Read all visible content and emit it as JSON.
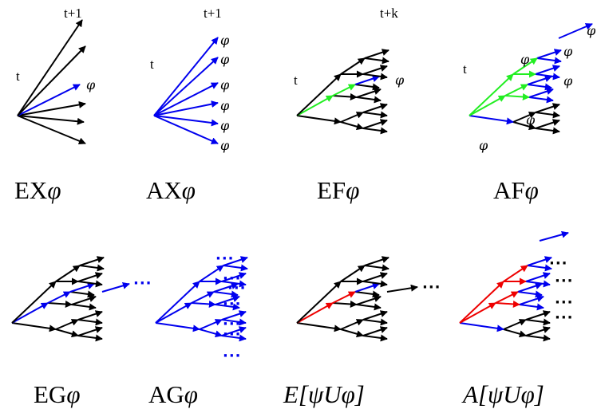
{
  "colors": {
    "black": "#000000",
    "blue": "#0000ee",
    "green": "#22ee22",
    "red": "#ee0000"
  },
  "symbols": {
    "phi": "φ",
    "ellipsis": "···"
  },
  "panels": [
    {
      "id": "ex",
      "caption": "EX",
      "caption_symbol": "φ",
      "time_labels": [
        "t",
        "t+1"
      ]
    },
    {
      "id": "ax",
      "caption": "AX",
      "caption_symbol": "φ",
      "time_labels": [
        "t",
        "t+1"
      ]
    },
    {
      "id": "ef",
      "caption": "EF",
      "caption_symbol": "φ",
      "time_labels": [
        "t",
        "t+k"
      ]
    },
    {
      "id": "af",
      "caption": "AF",
      "caption_symbol": "φ",
      "time_labels": [
        "t"
      ]
    },
    {
      "id": "eg",
      "caption": "EG",
      "caption_symbol": "φ",
      "time_labels": []
    },
    {
      "id": "ag",
      "caption": "AG",
      "caption_symbol": "φ",
      "time_labels": []
    },
    {
      "id": "eu",
      "caption": "E[ψUφ]",
      "time_labels": []
    },
    {
      "id": "au",
      "caption": "A[ψUφ]",
      "time_labels": []
    }
  ]
}
